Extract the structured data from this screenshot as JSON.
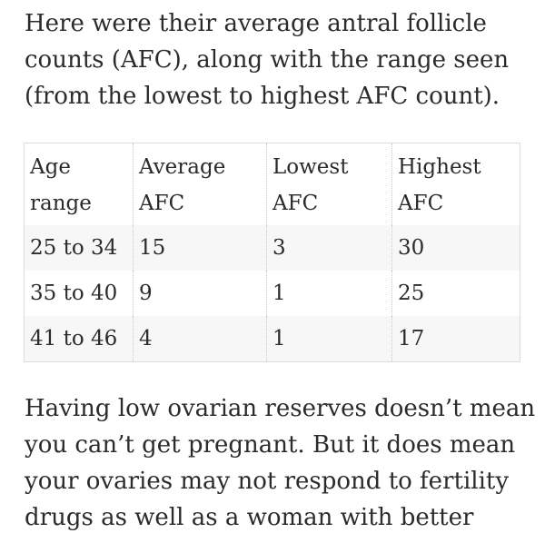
{
  "intro": {
    "lines": [
      "Here were their average antral follicle",
      "counts (AFC), along with the range seen",
      "(from the lowest to highest AFC count)."
    ]
  },
  "table": {
    "headers": [
      [
        "Age",
        "range"
      ],
      [
        "Average",
        "AFC"
      ],
      [
        "Lowest",
        "AFC"
      ],
      [
        "Highest",
        "AFC"
      ]
    ],
    "rows": [
      [
        "25 to 34",
        "15",
        "3",
        "30"
      ],
      [
        "35 to 40",
        "9",
        "1",
        "25"
      ],
      [
        "41 to 46",
        "4",
        "1",
        "17"
      ]
    ]
  },
  "outro": {
    "lines": [
      "Having low ovarian reserves doesn’t mean",
      "you can’t get pregnant. But it does mean",
      "your ovaries may not respond to fertility",
      "drugs as well as a woman with better"
    ]
  }
}
